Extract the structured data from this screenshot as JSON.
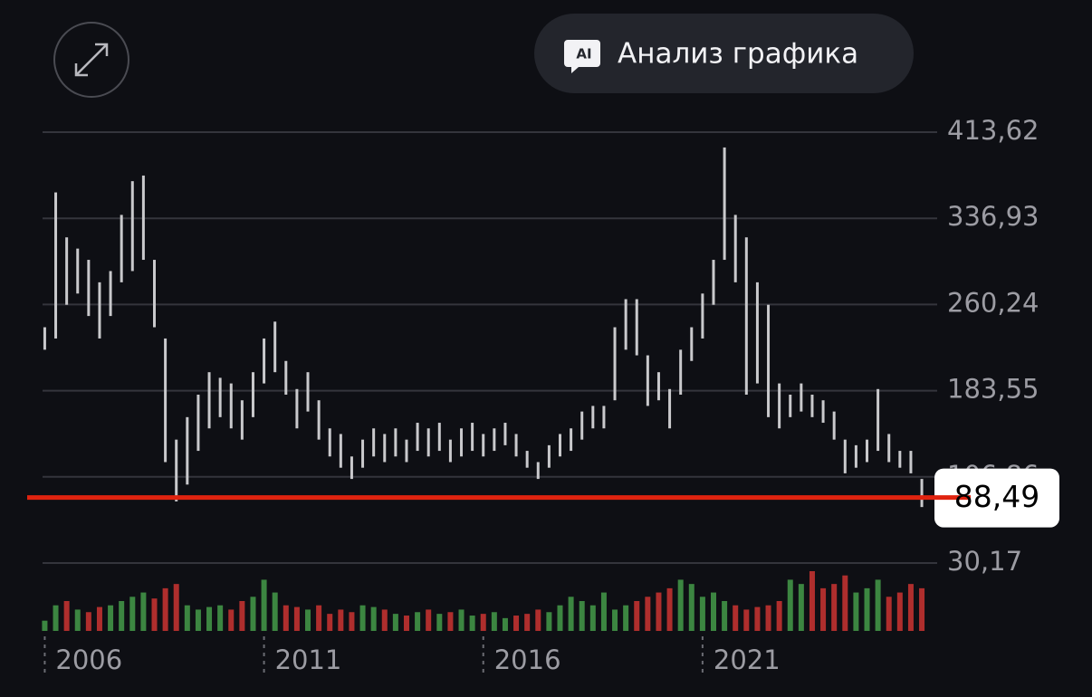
{
  "header": {
    "ai_icon": "AI",
    "analysis_button": "Анализ графика"
  },
  "chart_data": {
    "type": "candlestick",
    "x": [
      2006,
      2006.25,
      2006.5,
      2006.75,
      2007,
      2007.25,
      2007.5,
      2007.75,
      2008,
      2008.25,
      2008.5,
      2008.75,
      2009,
      2009.25,
      2009.5,
      2009.75,
      2010,
      2010.25,
      2010.5,
      2010.75,
      2011,
      2011.25,
      2011.5,
      2011.75,
      2012,
      2012.25,
      2012.5,
      2012.75,
      2013,
      2013.25,
      2013.5,
      2013.75,
      2014,
      2014.25,
      2014.5,
      2014.75,
      2015,
      2015.25,
      2015.5,
      2015.75,
      2016,
      2016.25,
      2016.5,
      2016.75,
      2017,
      2017.25,
      2017.5,
      2017.75,
      2018,
      2018.25,
      2018.5,
      2018.75,
      2019,
      2019.25,
      2019.5,
      2019.75,
      2020,
      2020.25,
      2020.5,
      2020.75,
      2021,
      2021.25,
      2021.5,
      2021.75,
      2022,
      2022.25,
      2022.5,
      2022.75,
      2023,
      2023.25,
      2023.5,
      2023.75,
      2024,
      2024.25,
      2024.5,
      2024.75,
      2025,
      2025.25,
      2025.5,
      2025.75,
      2026
    ],
    "low": [
      220,
      230,
      260,
      270,
      250,
      230,
      250,
      280,
      290,
      300,
      240,
      120,
      85,
      100,
      130,
      150,
      160,
      150,
      140,
      160,
      190,
      200,
      180,
      150,
      165,
      140,
      125,
      115,
      105,
      115,
      125,
      120,
      125,
      120,
      130,
      125,
      130,
      120,
      125,
      130,
      125,
      130,
      135,
      125,
      115,
      105,
      115,
      125,
      130,
      140,
      150,
      150,
      175,
      220,
      215,
      170,
      175,
      150,
      180,
      210,
      230,
      260,
      300,
      280,
      180,
      190,
      160,
      150,
      160,
      165,
      160,
      155,
      140,
      110,
      115,
      120,
      130,
      120,
      115,
      110,
      80
    ],
    "high": [
      240,
      360,
      320,
      310,
      300,
      280,
      290,
      340,
      370,
      375,
      300,
      230,
      140,
      160,
      180,
      200,
      195,
      190,
      175,
      200,
      230,
      245,
      210,
      185,
      200,
      175,
      150,
      145,
      125,
      140,
      150,
      145,
      150,
      140,
      155,
      150,
      155,
      140,
      150,
      155,
      145,
      150,
      155,
      145,
      130,
      120,
      135,
      145,
      150,
      165,
      170,
      170,
      240,
      265,
      265,
      215,
      200,
      185,
      220,
      240,
      270,
      300,
      400,
      340,
      320,
      280,
      260,
      190,
      180,
      190,
      180,
      175,
      165,
      140,
      135,
      140,
      185,
      145,
      130,
      130,
      105
    ],
    "volume": [
      12,
      30,
      35,
      25,
      22,
      28,
      30,
      35,
      40,
      45,
      38,
      50,
      55,
      30,
      25,
      28,
      30,
      25,
      35,
      40,
      60,
      45,
      30,
      28,
      25,
      30,
      20,
      25,
      22,
      30,
      28,
      25,
      20,
      18,
      22,
      25,
      20,
      22,
      25,
      18,
      20,
      22,
      15,
      18,
      20,
      25,
      22,
      30,
      40,
      35,
      30,
      45,
      25,
      30,
      35,
      40,
      45,
      50,
      60,
      55,
      40,
      45,
      35,
      30,
      25,
      28,
      30,
      35,
      60,
      55,
      70,
      50,
      55,
      65,
      45,
      50,
      60,
      40,
      45,
      55,
      50
    ],
    "color": "#c9c9cc",
    "volume_colors": [
      "#4caf50",
      "#e53935"
    ],
    "xlim": [
      2005.95,
      2026.35
    ],
    "xticks": [
      2006,
      2011,
      2016,
      2021
    ],
    "ylim": [
      30.17,
      413.62
    ],
    "yticks": [
      {
        "value": 30.17,
        "label": "30,17"
      },
      {
        "value": 106.86,
        "label": "106,86"
      },
      {
        "value": 183.55,
        "label": "183,55"
      },
      {
        "value": 260.24,
        "label": "260,24"
      },
      {
        "value": 336.93,
        "label": "336,93"
      },
      {
        "value": 413.62,
        "label": "413,62"
      }
    ],
    "grid": true,
    "last_value": 88.49,
    "last_label": "88,49",
    "last_color": "#e0230f"
  }
}
